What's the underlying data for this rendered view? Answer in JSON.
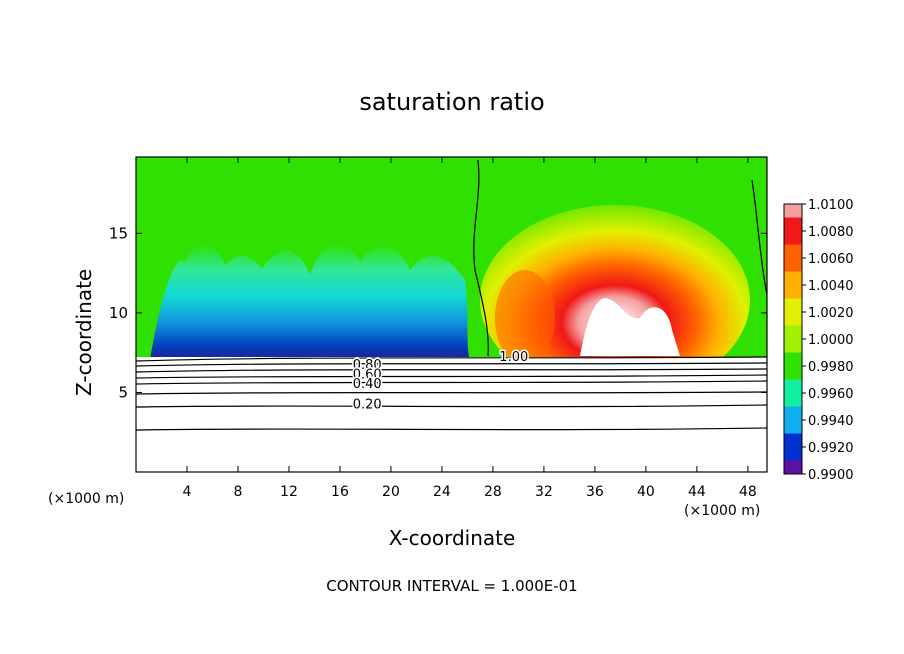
{
  "chart_data": {
    "type": "heatmap",
    "title": "saturation ratio",
    "xlabel": "X-coordinate",
    "ylabel": "Z-coordinate",
    "x_unit": "(×1000 m)",
    "x_ticks": [
      4,
      8,
      12,
      16,
      20,
      24,
      28,
      32,
      36,
      40,
      44,
      48
    ],
    "y_ticks": [
      5,
      10,
      15
    ],
    "xlim": [
      0,
      49.5
    ],
    "ylim": [
      0,
      19.8
    ],
    "colorbar": {
      "labels": [
        "1.0100",
        "1.0080",
        "1.0060",
        "1.0040",
        "1.0020",
        "1.0000",
        "0.9980",
        "0.9960",
        "0.9940",
        "0.9920",
        "0.9900"
      ],
      "colors": [
        "#f5a0a0",
        "#f01818",
        "#ff6000",
        "#ffb000",
        "#e0f000",
        "#a0f000",
        "#30e000",
        "#10f0a0",
        "#10b0f0",
        "#0030d0",
        "#6010a0"
      ]
    },
    "contour_labels": [
      {
        "text": "1.00",
        "x": 28.5,
        "y": 7.3
      },
      {
        "text": "0.80",
        "x": 17.0,
        "y": 6.8
      },
      {
        "text": "0.60",
        "x": 17.0,
        "y": 6.2
      },
      {
        "text": "0.40",
        "x": 17.0,
        "y": 5.6
      },
      {
        "text": "0.20",
        "x": 17.0,
        "y": 4.3
      }
    ],
    "contour_interval": "CONTOUR INTERVAL = 1.000E-01"
  }
}
